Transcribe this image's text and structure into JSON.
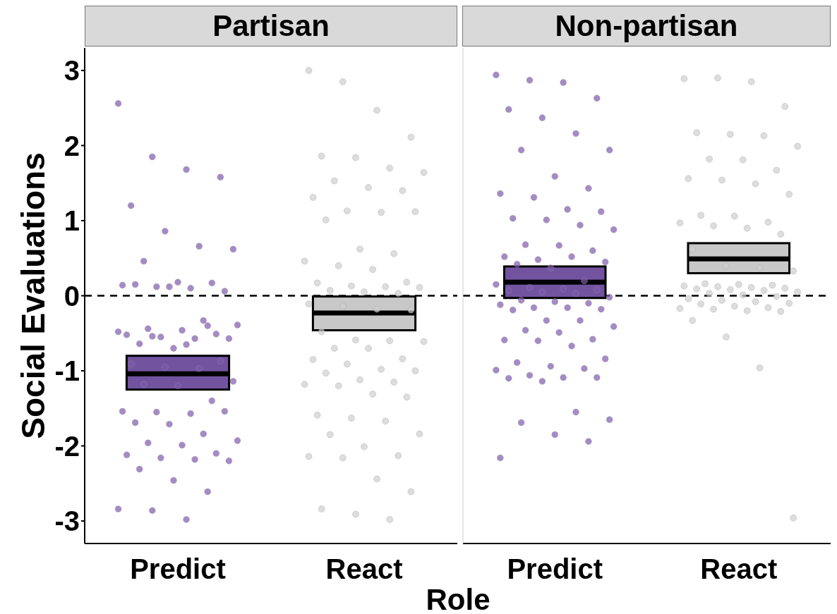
{
  "chart_data": [
    {
      "type": "box",
      "title": "Partisan",
      "ylabel": "Social Evaluations",
      "xlabel": "Role",
      "categories": [
        "Predict",
        "React"
      ],
      "colors": [
        "#7253a0",
        "#c8c8c8"
      ],
      "boxes": [
        {
          "low": -1.25,
          "q1": -1.25,
          "median": -1.04,
          "q3": -0.8,
          "high": -0.8
        },
        {
          "low": -0.46,
          "q1": -0.46,
          "median": -0.23,
          "q3": -0.01,
          "high": -0.01
        }
      ],
      "ylim": [
        -3.3,
        3.3
      ],
      "yticks": [
        -3,
        -2,
        -1,
        0,
        1,
        2,
        3
      ],
      "grid": false,
      "ref_lines": [
        {
          "axis": "y",
          "value": 0,
          "color": "#000000",
          "line_style": "dashed"
        }
      ],
      "series": [
        {
          "type": "scatter",
          "color": "#7e5aae",
          "x": [
            "Predict",
            "Predict",
            "Predict",
            "Predict",
            "Predict",
            "Predict",
            "Predict",
            "Predict",
            "Predict",
            "Predict",
            "Predict",
            "Predict",
            "Predict",
            "Predict",
            "Predict",
            "Predict",
            "Predict",
            "Predict",
            "Predict",
            "Predict",
            "Predict",
            "Predict",
            "Predict",
            "Predict",
            "Predict",
            "Predict",
            "Predict",
            "Predict",
            "Predict",
            "Predict",
            "Predict",
            "Predict",
            "Predict",
            "Predict",
            "Predict",
            "Predict",
            "Predict",
            "Predict",
            "Predict",
            "Predict",
            "Predict",
            "Predict",
            "Predict",
            "Predict",
            "Predict",
            "Predict",
            "Predict",
            "Predict",
            "Predict",
            "Predict",
            "Predict",
            "Predict",
            "Predict",
            "Predict",
            "Predict",
            "Predict",
            "Predict",
            "Predict",
            "Predict",
            "Predict",
            "Predict"
          ],
          "values": [
            2.56,
            1.85,
            1.68,
            1.58,
            1.2,
            0.86,
            0.66,
            0.62,
            0.46,
            0.18,
            0.17,
            0.14,
            0.12,
            0.1,
            0.06,
            0.15,
            0.12,
            -0.33,
            -0.39,
            -0.44,
            -0.46,
            -0.51,
            -0.52,
            -0.55,
            -0.57,
            -0.57,
            -0.64,
            -0.7,
            -0.4,
            -0.48,
            -0.54,
            -0.65,
            -0.87,
            -0.91,
            -0.95,
            -0.97,
            -1.14,
            -1.18,
            -1.2,
            -1.4,
            -1.54,
            -1.55,
            -1.57,
            -1.54,
            -1.69,
            -1.71,
            -1.84,
            -1.93,
            -1.96,
            -1.99,
            -2.1,
            -2.12,
            -2.16,
            -2.18,
            -2.2,
            -2.31,
            -2.46,
            -2.61,
            -2.84,
            -2.86,
            -2.98
          ]
        },
        {
          "type": "scatter",
          "color": "#cfcfcf",
          "x": [
            "React",
            "React",
            "React",
            "React",
            "React",
            "React",
            "React",
            "React",
            "React",
            "React",
            "React",
            "React",
            "React",
            "React",
            "React",
            "React",
            "React",
            "React",
            "React",
            "React",
            "React",
            "React",
            "React",
            "React",
            "React",
            "React",
            "React",
            "React",
            "React",
            "React",
            "React",
            "React",
            "React",
            "React",
            "React",
            "React",
            "React",
            "React",
            "React",
            "React",
            "React",
            "React",
            "React",
            "React",
            "React",
            "React",
            "React",
            "React",
            "React",
            "React",
            "React",
            "React",
            "React",
            "React",
            "React",
            "React",
            "React",
            "React",
            "React",
            "React",
            "React",
            "React",
            "React",
            "React",
            "React"
          ],
          "values": [
            3.0,
            2.85,
            2.47,
            2.11,
            1.86,
            1.84,
            1.7,
            1.64,
            1.53,
            1.44,
            1.4,
            1.31,
            1.13,
            1.11,
            1.12,
            1.01,
            0.62,
            0.56,
            0.46,
            0.4,
            0.35,
            0.18,
            0.17,
            0.13,
            0.12,
            0.11,
            0.07,
            0.05,
            0.03,
            -0.11,
            -0.14,
            -0.18,
            -0.19,
            -0.48,
            -0.59,
            -0.6,
            -0.61,
            -0.7,
            -0.7,
            -0.84,
            -0.85,
            -0.91,
            -0.98,
            -1.0,
            -1.03,
            -1.12,
            -1.15,
            -1.18,
            -1.2,
            -1.31,
            -1.35,
            -1.59,
            -1.63,
            -1.67,
            -1.84,
            -1.85,
            -2.01,
            -2.13,
            -2.14,
            -2.16,
            -2.44,
            -2.61,
            -2.84,
            -2.91,
            -2.98
          ]
        }
      ]
    },
    {
      "type": "box",
      "title": "Non-partisan",
      "categories": [
        "Predict",
        "React"
      ],
      "colors": [
        "#7253a0",
        "#c8c8c8"
      ],
      "tick_labels": "x",
      "boxes": [
        {
          "low": -0.03,
          "q1": -0.03,
          "median": 0.18,
          "q3": 0.39,
          "high": 0.39
        },
        {
          "low": 0.3,
          "q1": 0.3,
          "median": 0.49,
          "q3": 0.7,
          "high": 0.7
        }
      ],
      "ylim": [
        -3.3,
        3.3
      ],
      "yticks": [
        -3,
        -2,
        -1,
        0,
        1,
        2,
        3
      ],
      "grid": false,
      "ref_lines": [
        {
          "axis": "y",
          "value": 0,
          "color": "#000000",
          "line_style": "dashed"
        }
      ],
      "series": [
        {
          "type": "scatter",
          "color": "#7e5aae",
          "x": [
            "Predict",
            "Predict",
            "Predict",
            "Predict",
            "Predict",
            "Predict",
            "Predict",
            "Predict",
            "Predict",
            "Predict",
            "Predict",
            "Predict",
            "Predict",
            "Predict",
            "Predict",
            "Predict",
            "Predict",
            "Predict",
            "Predict",
            "Predict",
            "Predict",
            "Predict",
            "Predict",
            "Predict",
            "Predict",
            "Predict",
            "Predict",
            "Predict",
            "Predict",
            "Predict",
            "Predict",
            "Predict",
            "Predict",
            "Predict",
            "Predict",
            "Predict",
            "Predict",
            "Predict",
            "Predict",
            "Predict",
            "Predict",
            "Predict",
            "Predict",
            "Predict",
            "Predict",
            "Predict",
            "Predict",
            "Predict",
            "Predict",
            "Predict",
            "Predict",
            "Predict",
            "Predict",
            "Predict",
            "Predict",
            "Predict",
            "Predict",
            "Predict",
            "Predict",
            "Predict",
            "Predict",
            "Predict",
            "Predict",
            "Predict",
            "Predict",
            "Predict",
            "Predict",
            "Predict",
            "Predict",
            "Predict"
          ],
          "values": [
            2.94,
            2.87,
            2.84,
            2.63,
            2.48,
            2.37,
            2.16,
            1.94,
            1.94,
            1.59,
            1.43,
            1.36,
            1.31,
            1.15,
            1.12,
            1.03,
            1.01,
            0.94,
            0.88,
            0.68,
            0.67,
            0.6,
            0.52,
            0.48,
            0.52,
            0.45,
            0.42,
            0.37,
            0.2,
            0.15,
            0.11,
            0.09,
            0.08,
            0.07,
            0.05,
            0.03,
            -0.02,
            -0.06,
            -0.08,
            -0.1,
            -0.12,
            -0.16,
            -0.16,
            -0.18,
            -0.19,
            -0.33,
            -0.33,
            -0.41,
            -0.46,
            -0.49,
            -0.58,
            -0.59,
            -0.6,
            -0.67,
            -0.84,
            -0.89,
            -0.94,
            -0.97,
            -0.99,
            -1.06,
            -1.09,
            -1.09,
            -1.1,
            -1.14,
            -1.55,
            -1.65,
            -1.69,
            -1.85,
            -1.94,
            -2.16
          ]
        },
        {
          "type": "scatter",
          "color": "#cfcfcf",
          "x": [
            "React",
            "React",
            "React",
            "React",
            "React",
            "React",
            "React",
            "React",
            "React",
            "React",
            "React",
            "React",
            "React",
            "React",
            "React",
            "React",
            "React",
            "React",
            "React",
            "React",
            "React",
            "React",
            "React",
            "React",
            "React",
            "React",
            "React",
            "React",
            "React",
            "React",
            "React",
            "React",
            "React",
            "React",
            "React",
            "React",
            "React",
            "React",
            "React",
            "React",
            "React",
            "React",
            "React",
            "React",
            "React",
            "React",
            "React",
            "React",
            "React",
            "React",
            "React",
            "React",
            "React",
            "React",
            "React"
          ],
          "values": [
            2.89,
            2.9,
            2.85,
            2.52,
            2.17,
            2.15,
            2.13,
            1.99,
            1.82,
            1.81,
            1.67,
            1.56,
            1.54,
            1.49,
            1.35,
            1.07,
            1.06,
            0.98,
            0.97,
            0.93,
            0.9,
            0.82,
            0.62,
            0.4,
            0.37,
            0.33,
            0.16,
            0.15,
            0.14,
            0.13,
            0.12,
            0.11,
            0.1,
            0.09,
            0.08,
            0.07,
            0.05,
            0.03,
            0.01,
            -0.01,
            -0.04,
            -0.06,
            -0.08,
            -0.1,
            -0.11,
            -0.14,
            -0.16,
            -0.17,
            -0.18,
            -0.2,
            -0.21,
            -0.33,
            -0.55,
            -0.96,
            -2.96
          ]
        }
      ]
    }
  ]
}
